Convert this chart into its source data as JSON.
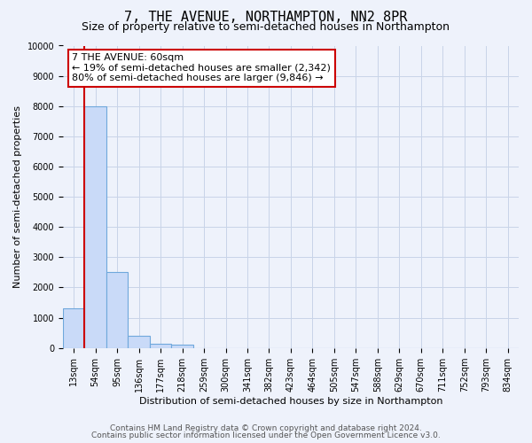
{
  "title": "7, THE AVENUE, NORTHAMPTON, NN2 8PR",
  "subtitle": "Size of property relative to semi-detached houses in Northampton",
  "xlabel": "Distribution of semi-detached houses by size in Northampton",
  "ylabel": "Number of semi-detached properties",
  "categories": [
    "13sqm",
    "54sqm",
    "95sqm",
    "136sqm",
    "177sqm",
    "218sqm",
    "259sqm",
    "300sqm",
    "341sqm",
    "382sqm",
    "423sqm",
    "464sqm",
    "505sqm",
    "547sqm",
    "588sqm",
    "629sqm",
    "670sqm",
    "711sqm",
    "752sqm",
    "793sqm",
    "834sqm"
  ],
  "values": [
    1300,
    8000,
    2500,
    400,
    150,
    100,
    0,
    0,
    0,
    0,
    0,
    0,
    0,
    0,
    0,
    0,
    0,
    0,
    0,
    0,
    0
  ],
  "bar_color": "#c9daf8",
  "bar_edge_color": "#6fa8dc",
  "bar_linewidth": 0.8,
  "ylim": [
    0,
    10000
  ],
  "yticks": [
    0,
    1000,
    2000,
    3000,
    4000,
    5000,
    6000,
    7000,
    8000,
    9000,
    10000
  ],
  "red_line_x": 0.5,
  "red_line_color": "#cc0000",
  "annotation_box_text": "7 THE AVENUE: 60sqm",
  "annotation_line1": "← 19% of semi-detached houses are smaller (2,342)",
  "annotation_line2": "80% of semi-detached houses are larger (9,846) →",
  "annotation_box_color": "#cc0000",
  "annotation_fill": "#ffffff",
  "footer_line1": "Contains HM Land Registry data © Crown copyright and database right 2024.",
  "footer_line2": "Contains public sector information licensed under the Open Government Licence v3.0.",
  "background_color": "#eef2fb",
  "grid_color": "#c8d4e8",
  "title_fontsize": 11,
  "subtitle_fontsize": 9,
  "axis_label_fontsize": 8,
  "tick_fontsize": 7,
  "annotation_fontsize": 8,
  "footer_fontsize": 6.5
}
